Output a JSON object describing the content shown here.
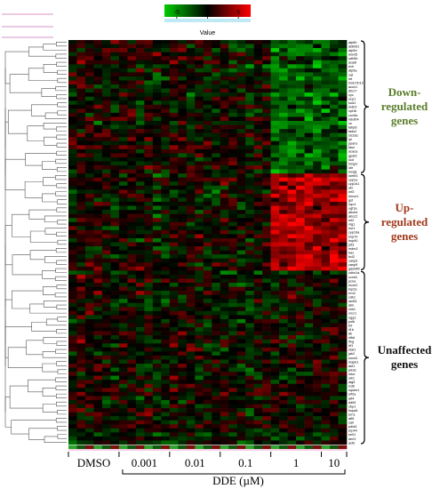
{
  "chart_data": {
    "type": "heatmap",
    "color_scale": {
      "label": "Value",
      "ticks": [
        "-5",
        "0",
        "5"
      ],
      "low_color": "#00cc00",
      "mid_color": "#000000",
      "high_color": "#ff0000",
      "range": [
        -7,
        7
      ]
    },
    "x_axis": {
      "title": "DDE (µM)",
      "groups": [
        {
          "label": "DMSO",
          "columns": 6
        },
        {
          "label": "0.001",
          "columns": 6
        },
        {
          "label": "0.01",
          "columns": 6
        },
        {
          "label": "0.1",
          "columns": 6
        },
        {
          "label": "1",
          "columns": 6
        },
        {
          "label": "10",
          "columns": 3
        }
      ]
    },
    "row_count": 100,
    "row_labels": [
      "atp6b",
      "aldh9l1",
      "atp5d",
      "elovl5",
      "sdh5b",
      "acadl",
      "ech",
      "atp5a",
      "cat",
      "mt",
      "hsd17b12",
      "acox1",
      "dhcr7",
      "cyc",
      "ucp1",
      "sod1",
      "mdh2",
      "cpt1b",
      "cox5a",
      "ndufb4",
      "cs",
      "fabp6",
      "fads2",
      "slc2a1",
      "lpl",
      "ppara",
      "fasn",
      "acaca",
      "gpat3",
      "scd",
      "hmgcr",
      "ldlr",
      "insig1",
      "srebf1",
      "cyp1a",
      "cyp1b1",
      "ahr",
      "nrf2",
      "hmox1",
      "gst",
      "nqo1",
      "ugt1a",
      "abcb4",
      "abcc2",
      "mt2",
      "vtg1",
      "esr1",
      "cyp19a",
      "hsp70",
      "hsp90",
      "p53",
      "mdm2",
      "bax",
      "bcl2",
      "casp3",
      "casp9",
      "gadd45",
      "cdkn1a",
      "ccnd1",
      "pcna",
      "mcm2",
      "top2a",
      "rrm2",
      "cdk1",
      "rad51",
      "atm",
      "chk1",
      "xrcc1",
      "ogg1",
      "polb",
      "tnf",
      "il1b",
      "il6",
      "nfkb",
      "ifng",
      "irf1",
      "stat1",
      "jak2",
      "socs3",
      "mapk1",
      "akt1",
      "pik3c",
      "mtor",
      "ulk1",
      "atg5",
      "lc3b",
      "sqstm1",
      "eif2a",
      "atf4",
      "ddit3",
      "xbp1",
      "hspa5",
      "ern1",
      "atf6",
      "calr",
      "pdia3",
      "erp44",
      "sel1l",
      "derl1",
      "actb"
    ],
    "row_clusters": [
      {
        "label": "Down-\nregulated\ngenes",
        "rows": [
          0,
          32
        ],
        "color": "#5a7d2a"
      },
      {
        "label": "Up-\nregulated\ngenes",
        "rows": [
          33,
          56
        ],
        "color": "#a0391b"
      },
      {
        "label": "Unaffected\ngenes",
        "rows": [
          57,
          99
        ],
        "color": "#111111"
      }
    ],
    "cluster_effects": [
      {
        "cluster": 0,
        "group_means": [
          0,
          0,
          0,
          0,
          -3.5,
          -3.0
        ]
      },
      {
        "cluster": 1,
        "group_means": [
          0,
          0,
          0,
          0.5,
          4.5,
          4.0
        ]
      },
      {
        "cluster": 2,
        "group_means": [
          0,
          0,
          0,
          0,
          0,
          0
        ]
      }
    ]
  }
}
